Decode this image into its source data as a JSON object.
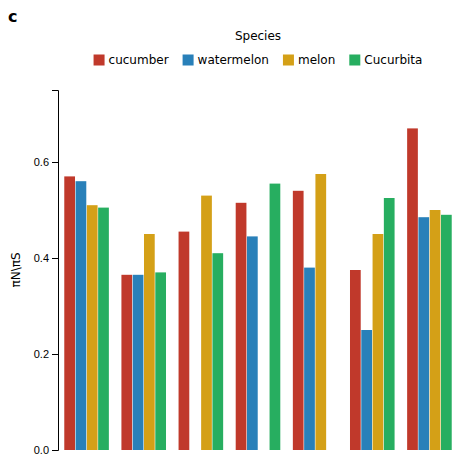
{
  "chart_data": {
    "type": "bar",
    "title": "c",
    "legend_title": "Species",
    "y_label": "πN\\πS",
    "categories": [
      null,
      null,
      null,
      null,
      null,
      null,
      null
    ],
    "series": [
      {
        "name": "cucumber",
        "color": "#c0392b",
        "values": [
          0.57,
          0.365,
          0.455,
          0.515,
          0.54,
          0.375,
          0.67
        ]
      },
      {
        "name": "watermelon",
        "color": "#2980b9",
        "values": [
          0.56,
          0.365,
          null,
          0.445,
          0.38,
          0.25,
          0.485
        ]
      },
      {
        "name": "melon",
        "color": "#d4a017",
        "values": [
          0.51,
          0.45,
          0.53,
          null,
          0.575,
          0.45,
          0.5
        ]
      },
      {
        "name": "Cucurbita",
        "color": "#27ae60",
        "values": [
          0.505,
          0.37,
          0.41,
          0.555,
          null,
          0.525,
          0.49
        ]
      }
    ],
    "ylim": [
      0,
      0.75
    ],
    "yticks": [
      {
        "value": 0.0,
        "label": "0.0"
      },
      0.2,
      0.4,
      0.6
    ],
    "grid": false,
    "legend": "top",
    "tick_labels": "y"
  }
}
